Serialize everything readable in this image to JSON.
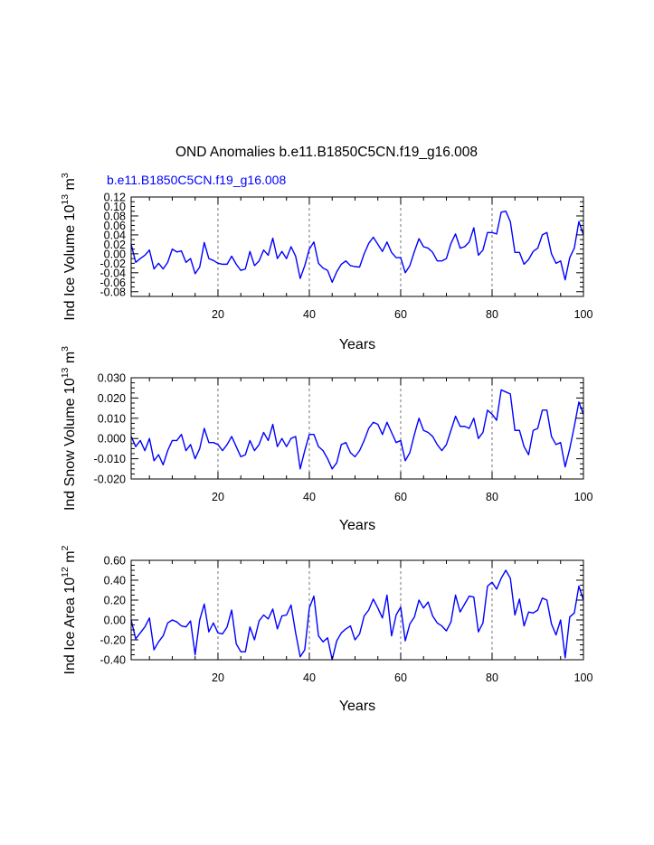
{
  "page": {
    "title": "OND Anomalies b.e11.B1850C5CN.f19_g16.008",
    "subtitle": "b.e11.B1850C5CN.f19_g16.008",
    "subtitle_color": "#0000ff"
  },
  "colors": {
    "line": "#0000ff",
    "axis": "#000000",
    "grid": "#555555"
  },
  "chart_data": [
    {
      "type": "line",
      "name": "ice-volume",
      "ylabel_main": "Ind Ice Volume 10",
      "ylabel_exp": "13",
      "ylabel_unit": " m",
      "ylabel_unit_exp": "3",
      "xlabel": "Years",
      "xlim": [
        1,
        100
      ],
      "ylim": [
        -0.09,
        0.12
      ],
      "xticks": [
        20,
        40,
        60,
        80,
        100
      ],
      "yticks": [
        -0.08,
        -0.04,
        0.0,
        0.04,
        0.08,
        0.12
      ],
      "ytick_labels": [
        "-0.08",
        "-0.04",
        "0.00",
        "0.04",
        "0.08",
        "0.12"
      ],
      "yticks_labeled": [
        -0.08,
        -0.06,
        -0.04,
        -0.02,
        0.0,
        0.02,
        0.04,
        0.06,
        0.08,
        0.1,
        0.12
      ],
      "ytick_labels_all": [
        "-0.08",
        "-0.06",
        "-0.04",
        "-0.02",
        "0.00",
        "0.02",
        "0.04",
        "0.06",
        "0.08",
        "0.10",
        "0.12"
      ],
      "vlines": [
        20,
        40,
        60,
        80
      ],
      "x": [
        1,
        2,
        3,
        4,
        5,
        6,
        7,
        8,
        9,
        10,
        11,
        12,
        13,
        14,
        15,
        16,
        17,
        18,
        19,
        20,
        21,
        22,
        23,
        24,
        25,
        26,
        27,
        28,
        29,
        30,
        31,
        32,
        33,
        34,
        35,
        36,
        37,
        38,
        39,
        40,
        41,
        42,
        43,
        44,
        45,
        46,
        47,
        48,
        49,
        50,
        51,
        52,
        53,
        54,
        55,
        56,
        57,
        58,
        59,
        60,
        61,
        62,
        63,
        64,
        65,
        66,
        67,
        68,
        69,
        70,
        71,
        72,
        73,
        74,
        75,
        76,
        77,
        78,
        79,
        80,
        81,
        82,
        83,
        84,
        85,
        86,
        87,
        88,
        89,
        90,
        91,
        92,
        93,
        94,
        95,
        96,
        97,
        98,
        99,
        100
      ],
      "values": [
        0.02,
        -0.018,
        -0.01,
        -0.003,
        0.008,
        -0.032,
        -0.02,
        -0.032,
        -0.018,
        0.01,
        0.004,
        0.006,
        -0.018,
        -0.01,
        -0.042,
        -0.028,
        0.024,
        -0.01,
        -0.014,
        -0.02,
        -0.022,
        -0.022,
        -0.005,
        -0.022,
        -0.035,
        -0.032,
        0.005,
        -0.025,
        -0.015,
        0.008,
        -0.003,
        0.033,
        -0.01,
        0.005,
        -0.01,
        0.015,
        -0.005,
        -0.052,
        -0.025,
        0.01,
        0.025,
        -0.02,
        -0.03,
        -0.035,
        -0.06,
        -0.038,
        -0.022,
        -0.015,
        -0.025,
        -0.027,
        -0.028,
        0.0,
        0.022,
        0.035,
        0.02,
        0.005,
        0.025,
        0.003,
        -0.008,
        -0.008,
        -0.04,
        -0.025,
        0.005,
        0.032,
        0.015,
        0.012,
        0.003,
        -0.015,
        -0.015,
        -0.01,
        0.022,
        0.042,
        0.012,
        0.015,
        0.025,
        0.055,
        -0.003,
        0.008,
        0.045,
        0.045,
        0.042,
        0.088,
        0.09,
        0.068,
        0.003,
        0.003,
        -0.022,
        -0.012,
        0.005,
        0.012,
        0.04,
        0.045,
        0.0,
        -0.02,
        -0.015,
        -0.055,
        -0.008,
        0.012,
        0.068,
        0.04
      ]
    },
    {
      "type": "line",
      "name": "snow-volume",
      "ylabel_main": "Ind Snow Volume 10",
      "ylabel_exp": "13",
      "ylabel_unit": " m",
      "ylabel_unit_exp": "3",
      "xlabel": "Years",
      "xlim": [
        1,
        100
      ],
      "ylim": [
        -0.02,
        0.03
      ],
      "xticks": [
        20,
        40,
        60,
        80,
        100
      ],
      "yticks": [
        -0.02,
        -0.01,
        0.0,
        0.01,
        0.02,
        0.03
      ],
      "ytick_labels": [
        "-0.020",
        "-0.010",
        "0.000",
        "0.010",
        "0.020",
        "0.030"
      ],
      "vlines": [
        20,
        40,
        60,
        80
      ],
      "x": [
        1,
        2,
        3,
        4,
        5,
        6,
        7,
        8,
        9,
        10,
        11,
        12,
        13,
        14,
        15,
        16,
        17,
        18,
        19,
        20,
        21,
        22,
        23,
        24,
        25,
        26,
        27,
        28,
        29,
        30,
        31,
        32,
        33,
        34,
        35,
        36,
        37,
        38,
        39,
        40,
        41,
        42,
        43,
        44,
        45,
        46,
        47,
        48,
        49,
        50,
        51,
        52,
        53,
        54,
        55,
        56,
        57,
        58,
        59,
        60,
        61,
        62,
        63,
        64,
        65,
        66,
        67,
        68,
        69,
        70,
        71,
        72,
        73,
        74,
        75,
        76,
        77,
        78,
        79,
        80,
        81,
        82,
        83,
        84,
        85,
        86,
        87,
        88,
        89,
        90,
        91,
        92,
        93,
        94,
        95,
        96,
        97,
        98,
        99,
        100
      ],
      "values": [
        0.001,
        -0.004,
        -0.001,
        -0.006,
        0.0,
        -0.011,
        -0.008,
        -0.013,
        -0.006,
        -0.001,
        -0.001,
        0.002,
        -0.006,
        -0.003,
        -0.01,
        -0.005,
        0.005,
        -0.002,
        -0.002,
        -0.003,
        -0.006,
        -0.003,
        0.001,
        -0.004,
        -0.009,
        -0.008,
        -0.001,
        -0.006,
        -0.003,
        0.003,
        -0.001,
        0.007,
        -0.004,
        0.0,
        -0.004,
        0.0,
        0.001,
        -0.015,
        -0.006,
        0.002,
        0.002,
        -0.004,
        -0.006,
        -0.01,
        -0.015,
        -0.012,
        -0.003,
        -0.002,
        -0.007,
        -0.009,
        -0.006,
        -0.001,
        0.005,
        0.008,
        0.007,
        0.002,
        0.008,
        0.003,
        -0.002,
        -0.001,
        -0.011,
        -0.007,
        0.002,
        0.01,
        0.004,
        0.003,
        0.001,
        -0.003,
        -0.006,
        -0.003,
        0.004,
        0.011,
        0.006,
        0.006,
        0.005,
        0.01,
        0.0,
        0.003,
        0.014,
        0.012,
        0.009,
        0.024,
        0.023,
        0.022,
        0.004,
        0.004,
        -0.004,
        -0.008,
        0.004,
        0.005,
        0.014,
        0.014,
        0.001,
        -0.003,
        -0.002,
        -0.014,
        -0.005,
        0.006,
        0.018,
        0.012
      ]
    },
    {
      "type": "line",
      "name": "ice-area",
      "ylabel_main": "Ind Ice Area 10",
      "ylabel_exp": "12",
      "ylabel_unit": " m",
      "ylabel_unit_exp": "2",
      "xlabel": "Years",
      "xlim": [
        1,
        100
      ],
      "ylim": [
        -0.4,
        0.6
      ],
      "xticks": [
        20,
        40,
        60,
        80,
        100
      ],
      "yticks": [
        -0.4,
        -0.2,
        0.0,
        0.2,
        0.4,
        0.6
      ],
      "ytick_labels": [
        "-0.40",
        "-0.20",
        "0.00",
        "0.20",
        "0.40",
        "0.60"
      ],
      "vlines": [
        20,
        40,
        60,
        80
      ],
      "x": [
        1,
        2,
        3,
        4,
        5,
        6,
        7,
        8,
        9,
        10,
        11,
        12,
        13,
        14,
        15,
        16,
        17,
        18,
        19,
        20,
        21,
        22,
        23,
        24,
        25,
        26,
        27,
        28,
        29,
        30,
        31,
        32,
        33,
        34,
        35,
        36,
        37,
        38,
        39,
        40,
        41,
        42,
        43,
        44,
        45,
        46,
        47,
        48,
        49,
        50,
        51,
        52,
        53,
        54,
        55,
        56,
        57,
        58,
        59,
        60,
        61,
        62,
        63,
        64,
        65,
        66,
        67,
        68,
        69,
        70,
        71,
        72,
        73,
        74,
        75,
        76,
        77,
        78,
        79,
        80,
        81,
        82,
        83,
        84,
        85,
        86,
        87,
        88,
        89,
        90,
        91,
        92,
        93,
        94,
        95,
        96,
        97,
        98,
        99,
        100
      ],
      "values": [
        0.0,
        -0.19,
        -0.13,
        -0.07,
        0.02,
        -0.3,
        -0.22,
        -0.16,
        -0.03,
        0.0,
        -0.02,
        -0.06,
        -0.07,
        -0.01,
        -0.35,
        0.0,
        0.16,
        -0.12,
        -0.03,
        -0.13,
        -0.14,
        -0.07,
        0.1,
        -0.24,
        -0.32,
        -0.32,
        -0.07,
        -0.2,
        -0.01,
        0.05,
        0.01,
        0.11,
        -0.09,
        0.04,
        0.05,
        0.15,
        -0.13,
        -0.37,
        -0.3,
        0.12,
        0.24,
        -0.16,
        -0.22,
        -0.18,
        -0.4,
        -0.21,
        -0.13,
        -0.09,
        -0.06,
        -0.2,
        -0.14,
        0.04,
        0.1,
        0.21,
        0.12,
        0.02,
        0.25,
        -0.16,
        0.05,
        0.13,
        -0.21,
        -0.04,
        0.03,
        0.2,
        0.12,
        0.18,
        0.04,
        -0.03,
        -0.06,
        -0.11,
        -0.02,
        0.25,
        0.08,
        0.16,
        0.24,
        0.23,
        -0.12,
        -0.03,
        0.34,
        0.38,
        0.31,
        0.42,
        0.5,
        0.42,
        0.05,
        0.21,
        -0.06,
        0.08,
        0.07,
        0.1,
        0.22,
        0.2,
        -0.04,
        -0.15,
        0.0,
        -0.38,
        0.03,
        0.07,
        0.34,
        0.2
      ]
    }
  ]
}
